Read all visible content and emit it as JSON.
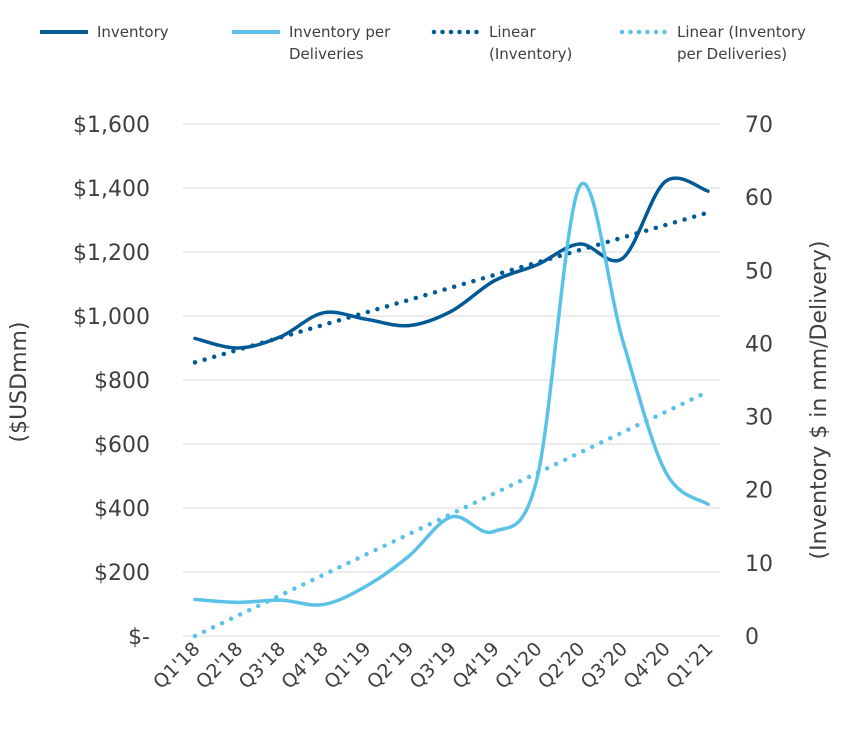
{
  "chart_data": {
    "type": "line",
    "categories": [
      "Q1'18",
      "Q2'18",
      "Q3'18",
      "Q4'18",
      "Q1'19",
      "Q2'19",
      "Q3'19",
      "Q4'19",
      "Q1'20",
      "Q2'20",
      "Q3'20",
      "Q4'20",
      "Q1'21"
    ],
    "series": [
      {
        "name": "Inventory",
        "axis": "left",
        "style": "solid",
        "color": "#005A96",
        "values": [
          930,
          900,
          935,
          1010,
          990,
          970,
          1015,
          1110,
          1160,
          1225,
          1180,
          1420,
          1390
        ]
      },
      {
        "name": "Inventory per Deliveries",
        "axis": "right",
        "style": "solid",
        "color": "#5BC2E7",
        "values": [
          5,
          4.6,
          4.9,
          4.3,
          6.8,
          10.9,
          16.3,
          14.3,
          21.5,
          61.5,
          40.5,
          22.5,
          18
        ]
      },
      {
        "name": "Linear (Inventory)",
        "axis": "left",
        "style": "dotted",
        "color": "#005A96",
        "values": [
          855,
          894,
          933,
          972,
          1011,
          1050,
          1089,
          1128,
          1167,
          1206,
          1245,
          1284,
          1323
        ]
      },
      {
        "name": "Linear (Inventory per Deliveries)",
        "axis": "right",
        "style": "dotted",
        "color": "#5BC2E7",
        "values": [
          0,
          2.8,
          5.6,
          8.4,
          11.2,
          14,
          16.8,
          19.6,
          22.4,
          25.2,
          28,
          30.8,
          33.4
        ]
      }
    ],
    "legend": {
      "placement": "top",
      "entries": [
        {
          "lines": [
            "Inventory"
          ],
          "color": "#005A96",
          "style": "solid"
        },
        {
          "lines": [
            "Inventory per",
            "Deliveries"
          ],
          "color": "#5BC2E7",
          "style": "solid"
        },
        {
          "lines": [
            "Linear",
            "(Inventory)"
          ],
          "color": "#005A96",
          "style": "dotted"
        },
        {
          "lines": [
            "Linear (Inventory",
            "per Deliveries)"
          ],
          "color": "#5BC2E7",
          "style": "dotted"
        }
      ]
    },
    "y_left": {
      "label": "($USDmm)",
      "range": [
        0,
        1600
      ],
      "ticks": [
        0,
        200,
        400,
        600,
        800,
        1000,
        1200,
        1400,
        1600
      ],
      "tick_labels": [
        "$-",
        "$200",
        "$400",
        "$600",
        "$800",
        "$1,000",
        "$1,200",
        "$1,400",
        "$1,600"
      ]
    },
    "y_right": {
      "label": "(Inventory $ in mm/Delivery)",
      "range": [
        0,
        70
      ],
      "ticks": [
        0,
        10,
        20,
        30,
        40,
        50,
        60,
        70
      ],
      "tick_labels": [
        "0",
        "10",
        "20",
        "30",
        "40",
        "50",
        "60",
        "70"
      ]
    },
    "grid": true
  }
}
